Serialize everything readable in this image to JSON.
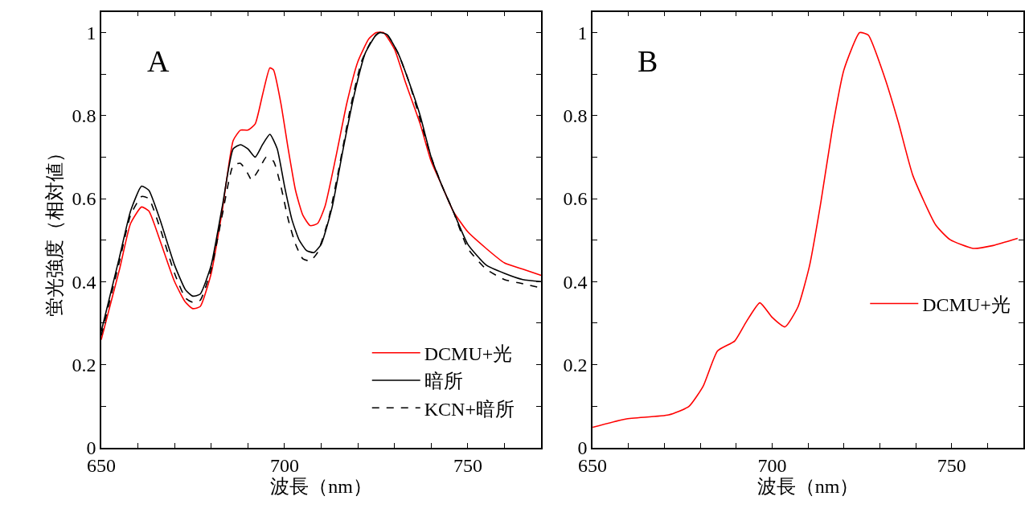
{
  "chart_data": [
    {
      "type": "line",
      "title": "A",
      "xlabel": "波長（nm）",
      "ylabel": "蛍光強度（相対値）",
      "legend": "bottom right",
      "xlim": [
        650,
        770
      ],
      "ylim": [
        0,
        1.05
      ],
      "xticks": [
        650,
        {
          "value": 660,
          "label": null
        },
        {
          "value": 670,
          "label": null
        },
        {
          "value": 680,
          "label": null
        },
        {
          "value": 690,
          "label": null
        },
        700,
        {
          "value": 710,
          "label": null
        },
        {
          "value": 720,
          "label": null
        },
        {
          "value": 730,
          "label": null
        },
        {
          "value": 740,
          "label": null
        },
        750,
        {
          "value": 760,
          "label": null
        },
        {
          "value": 770,
          "label": null
        }
      ],
      "yticks": [
        0,
        {
          "value": 0.1,
          "label": null
        },
        0.2,
        {
          "value": 0.3,
          "label": null
        },
        0.4,
        {
          "value": 0.5,
          "label": null
        },
        0.6,
        {
          "value": 0.7,
          "label": null
        },
        0.8,
        {
          "value": 0.9,
          "label": null
        },
        1
      ],
      "series": [
        {
          "name": "DCMU+光",
          "color": "#ff0000",
          "line_style": "solid",
          "x": [
            650,
            655,
            658,
            661,
            663,
            666,
            670,
            673,
            675,
            677,
            680,
            683,
            686,
            688,
            690,
            692,
            694,
            696,
            697,
            699,
            701,
            703,
            705,
            707,
            709,
            711,
            714,
            717,
            720,
            723,
            725,
            727,
            730,
            733,
            737,
            740,
            743,
            746,
            750,
            755,
            760,
            765,
            770
          ],
          "values": [
            0.26,
            0.43,
            0.54,
            0.58,
            0.57,
            0.5,
            0.4,
            0.35,
            0.335,
            0.34,
            0.42,
            0.57,
            0.74,
            0.765,
            0.765,
            0.78,
            0.85,
            0.915,
            0.91,
            0.83,
            0.72,
            0.62,
            0.56,
            0.535,
            0.54,
            0.58,
            0.7,
            0.83,
            0.93,
            0.985,
            1.0,
            1.0,
            0.96,
            0.88,
            0.78,
            0.69,
            0.63,
            0.57,
            0.52,
            0.48,
            0.445,
            0.43,
            0.415
          ]
        },
        {
          "name": "暗所",
          "color": "#000000",
          "line_style": "solid",
          "x": [
            650,
            655,
            658,
            661,
            663,
            666,
            670,
            673,
            675,
            677,
            680,
            683,
            686,
            688,
            690,
            692,
            694,
            696,
            698,
            700,
            702,
            704,
            706,
            708,
            710,
            713,
            716,
            719,
            722,
            725,
            726,
            728,
            731,
            734,
            737,
            740,
            743,
            746,
            750,
            755,
            760,
            765,
            770
          ],
          "values": [
            0.28,
            0.46,
            0.57,
            0.63,
            0.62,
            0.55,
            0.44,
            0.38,
            0.365,
            0.37,
            0.44,
            0.58,
            0.72,
            0.73,
            0.72,
            0.7,
            0.73,
            0.755,
            0.72,
            0.63,
            0.55,
            0.5,
            0.475,
            0.47,
            0.49,
            0.58,
            0.72,
            0.85,
            0.95,
            0.995,
            1.0,
            0.995,
            0.95,
            0.88,
            0.8,
            0.7,
            0.63,
            0.57,
            0.49,
            0.44,
            0.42,
            0.405,
            0.4
          ]
        },
        {
          "name": "KCN+暗所",
          "color": "#000000",
          "line_style": "dashed",
          "x": [
            650,
            655,
            658,
            661,
            663,
            666,
            670,
            673,
            675,
            677,
            680,
            683,
            686,
            688,
            690,
            691,
            693,
            695,
            697,
            699,
            701,
            703,
            705,
            707,
            709,
            712,
            715,
            718,
            721,
            724,
            726,
            728,
            731,
            734,
            737,
            740,
            743,
            746,
            750,
            755,
            760,
            765,
            770
          ],
          "values": [
            0.27,
            0.45,
            0.56,
            0.605,
            0.6,
            0.53,
            0.42,
            0.36,
            0.35,
            0.355,
            0.43,
            0.56,
            0.68,
            0.685,
            0.66,
            0.645,
            0.67,
            0.7,
            0.69,
            0.63,
            0.55,
            0.49,
            0.455,
            0.45,
            0.47,
            0.55,
            0.68,
            0.82,
            0.93,
            0.985,
            1.0,
            0.995,
            0.95,
            0.88,
            0.79,
            0.7,
            0.63,
            0.57,
            0.48,
            0.43,
            0.405,
            0.395,
            0.385
          ]
        }
      ]
    },
    {
      "type": "line",
      "title": "B",
      "xlabel": "波長（nm）",
      "legend": "right",
      "xlim": [
        650,
        770
      ],
      "ylim": [
        0,
        1.05
      ],
      "xticks": [
        650,
        {
          "value": 660,
          "label": null
        },
        {
          "value": 670,
          "label": null
        },
        {
          "value": 680,
          "label": null
        },
        {
          "value": 690,
          "label": null
        },
        700,
        {
          "value": 710,
          "label": null
        },
        {
          "value": 720,
          "label": null
        },
        {
          "value": 730,
          "label": null
        },
        {
          "value": 740,
          "label": null
        },
        750,
        {
          "value": 760,
          "label": null
        },
        {
          "value": 770,
          "label": null
        }
      ],
      "yticks": [
        0,
        {
          "value": 0.1,
          "label": null
        },
        0.2,
        {
          "value": 0.3,
          "label": null
        },
        0.4,
        {
          "value": 0.5,
          "label": null
        },
        0.6,
        {
          "value": 0.7,
          "label": null
        },
        0.8,
        {
          "value": 0.9,
          "label": null
        },
        1
      ],
      "series": [
        {
          "name": "DCMU+光",
          "color": "#ff0000",
          "line_style": "solid",
          "x": [
            650,
            659.2,
            671.2,
            676.8,
            680.8,
            684.8,
            689.6,
            692.8,
            696.6,
            700,
            703.6,
            707.2,
            710.4,
            713.6,
            716.8,
            720,
            724.4,
            726.8,
            731.2,
            735.2,
            739.2,
            745.6,
            749.6,
            756,
            761.6,
            768.4
          ],
          "values": [
            0.049,
            0.069,
            0.079,
            0.099,
            0.148,
            0.233,
            0.257,
            0.303,
            0.349,
            0.314,
            0.291,
            0.339,
            0.437,
            0.592,
            0.769,
            0.91,
            1.0,
            0.994,
            0.896,
            0.783,
            0.656,
            0.536,
            0.501,
            0.48,
            0.487,
            0.504
          ]
        }
      ]
    }
  ]
}
